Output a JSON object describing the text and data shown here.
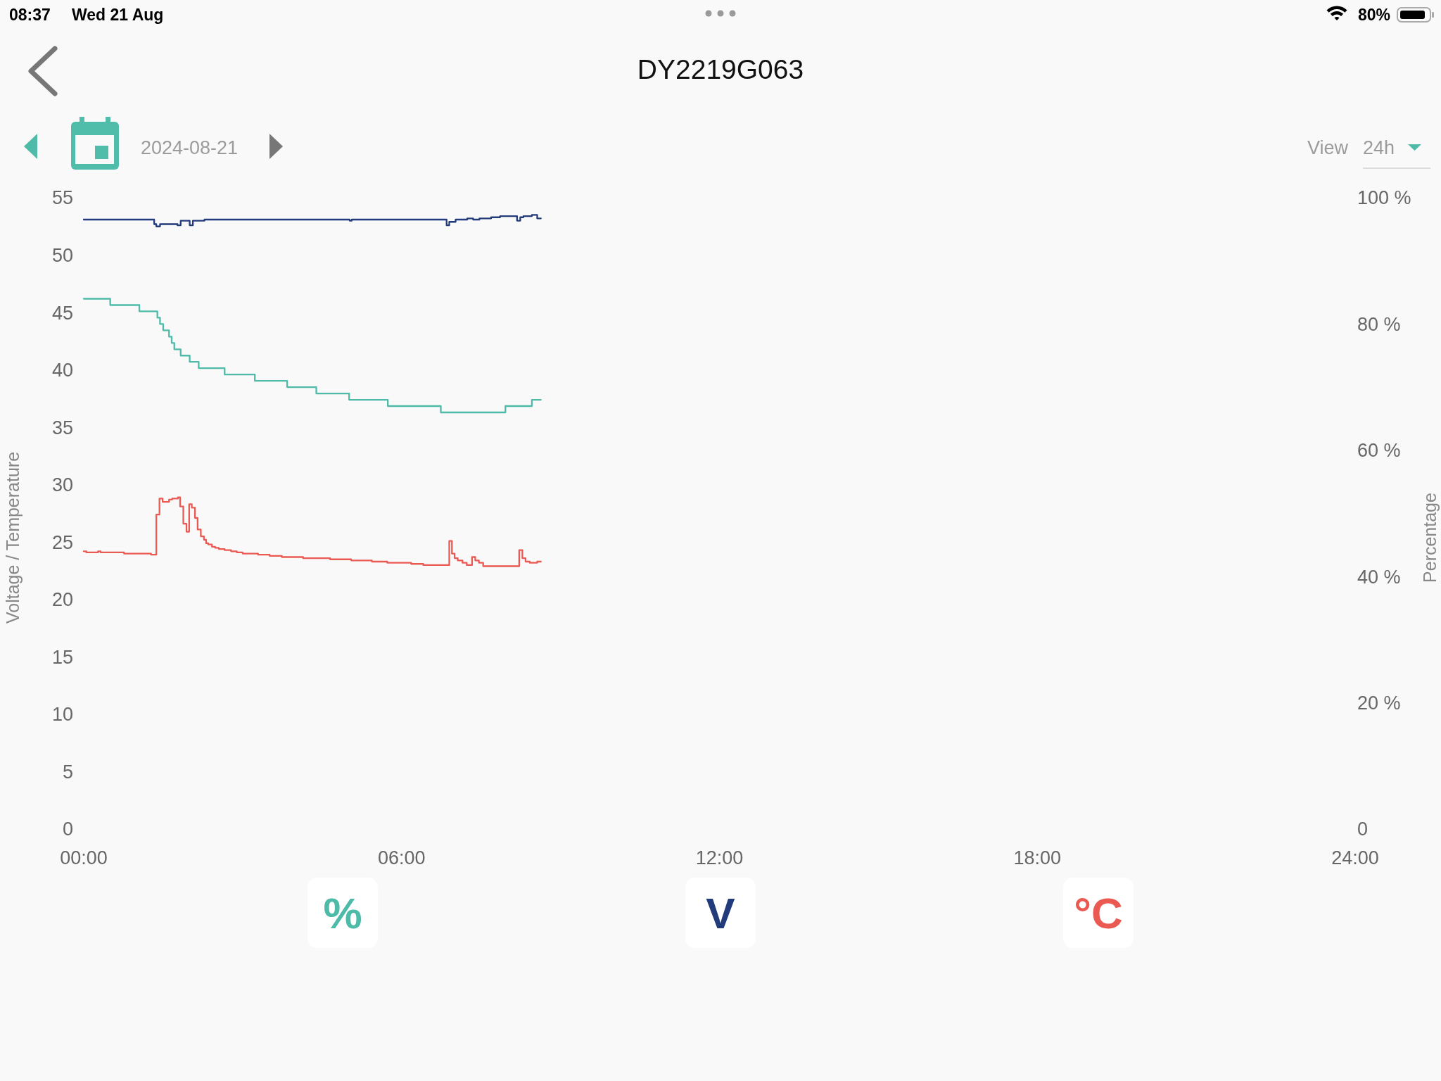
{
  "chart_data": {
    "type": "step",
    "title": "DY2219G063",
    "ylabel": "Voltage / Temperature",
    "y2label": "Percentage",
    "annotations": [
      "08:37",
      "Wed 21 Aug",
      "80%",
      "2024-08-21",
      "View",
      "24h"
    ],
    "xlim": [
      0,
      24
    ],
    "xticks": [
      {
        "value": 0,
        "label": "00:00"
      },
      {
        "value": 6,
        "label": "06:00"
      },
      {
        "value": 12,
        "label": "12:00"
      },
      {
        "value": 18,
        "label": "18:00"
      },
      {
        "value": 24,
        "label": "24:00"
      }
    ],
    "ylim": [
      0,
      55
    ],
    "yticks": [
      0,
      5,
      10,
      15,
      20,
      25,
      30,
      35,
      40,
      45,
      50,
      55
    ],
    "y2lim": [
      0,
      100
    ],
    "y2ticks": [
      0,
      {
        "value": 20,
        "label": "20 %"
      },
      {
        "value": 40,
        "label": "40 %"
      },
      {
        "value": 60,
        "label": "60 %"
      },
      {
        "value": 80,
        "label": "80 %"
      },
      {
        "value": 100,
        "label": "100 %"
      }
    ],
    "legend": "bottom",
    "series": [
      {
        "name": "%",
        "color": "#4dbba8",
        "axis": "y2",
        "x": [
          0,
          0.5,
          1.05,
          1.39,
          1.44,
          1.5,
          1.61,
          1.66,
          1.71,
          1.83,
          2.0,
          2.17,
          2.66,
          3.23,
          3.84,
          4.39,
          5.01,
          5.74,
          6.74,
          7.96,
          8.46,
          8.63
        ],
        "values": [
          84,
          83,
          82,
          81,
          80,
          79,
          78,
          77,
          76,
          75,
          74,
          73,
          72,
          71,
          70,
          69,
          68,
          67,
          66,
          67,
          68,
          68
        ]
      },
      {
        "name": "V",
        "color": "#223b7b",
        "x": [
          0,
          1.33,
          1.37,
          1.44,
          1.77,
          1.83,
          2.0,
          2.06,
          2.28,
          5.02,
          5.06,
          6.85,
          6.9,
          7.02,
          7.24,
          7.35,
          7.47,
          7.69,
          7.86,
          8.18,
          8.24,
          8.3,
          8.46,
          8.56,
          8.63
        ],
        "values": [
          53.1,
          52.7,
          52.5,
          52.7,
          52.6,
          53.0,
          52.6,
          53.0,
          53.1,
          53.0,
          53.1,
          52.6,
          52.9,
          53.1,
          53.2,
          53.1,
          53.2,
          53.3,
          53.4,
          53.0,
          53.3,
          53.4,
          53.5,
          53.2,
          53.2
        ]
      },
      {
        "name": "°C",
        "color": "#eb5a52",
        "x": [
          0,
          0.05,
          0.27,
          0.32,
          0.76,
          1.27,
          1.37,
          1.43,
          1.49,
          1.61,
          1.67,
          1.78,
          1.82,
          1.88,
          1.94,
          1.99,
          2.04,
          2.1,
          2.15,
          2.21,
          2.27,
          2.31,
          2.35,
          2.42,
          2.48,
          2.55,
          2.66,
          2.78,
          2.89,
          3.0,
          3.29,
          3.51,
          3.74,
          4.14,
          4.65,
          5.05,
          5.44,
          5.73,
          6.18,
          6.41,
          6.9,
          6.95,
          7.0,
          7.06,
          7.15,
          7.23,
          7.33,
          7.39,
          7.46,
          7.54,
          8.22,
          8.28,
          8.34,
          8.42,
          8.56,
          8.63
        ],
        "values": [
          24.2,
          24.1,
          24.2,
          24.1,
          24.0,
          23.9,
          27.4,
          28.8,
          28.5,
          28.7,
          28.8,
          28.9,
          28.1,
          26.6,
          25.9,
          28.3,
          28.0,
          27.1,
          26.1,
          25.5,
          25.2,
          24.9,
          24.8,
          24.6,
          24.5,
          24.4,
          24.3,
          24.2,
          24.1,
          24.0,
          23.9,
          23.8,
          23.7,
          23.6,
          23.5,
          23.4,
          23.3,
          23.2,
          23.1,
          23.0,
          25.1,
          24.0,
          23.6,
          23.4,
          23.2,
          23.0,
          23.7,
          23.4,
          23.2,
          22.9,
          24.3,
          23.6,
          23.3,
          23.2,
          23.3,
          23.3
        ]
      }
    ]
  }
}
